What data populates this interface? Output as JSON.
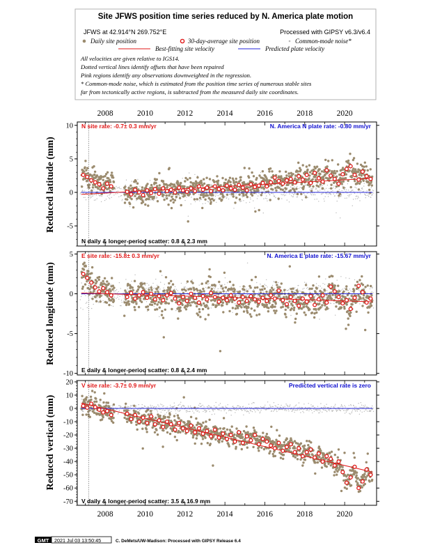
{
  "header": {
    "title": "Site JFWS position time series reduced by N. America plate motion",
    "site_line": "JFWS at 42.914°N 269.752°E",
    "processing_line": "Processed with GIPSY v6.3/v6.4",
    "legend": {
      "daily": "Daily site position",
      "avg30": "30-day-average site position",
      "cmn": "Common-mode noise*",
      "fit": "Best-fitting site velocity",
      "pred": "Predicted plate velocity"
    },
    "notes": [
      "All velocities are given relative to IGS14.",
      "Dotted vertical lines identify offsets that have been repaired",
      "Pink regions identify any observations downweighted in the regression.",
      "* Common-mode noise, which is estimated from the position time series of numerous stable sites",
      "far from tectonically active regions, is subtracted from the measured daily site coordinates."
    ]
  },
  "colors": {
    "daily": "#9b8b6e",
    "avg_fill": "#ffffff",
    "avg_stroke": "#e01818",
    "cmn": "#b8b8b8",
    "fit": "#e01818",
    "pred": "#2424d8",
    "site_rate_text": "#e01818",
    "plate_rate_text": "#1010d0"
  },
  "chart_data": [
    {
      "type": "scatter",
      "component": "N",
      "ylabel": "Reduced latitude (mm)",
      "xlim": [
        2006.6,
        2021.6
      ],
      "ylim": [
        -8,
        10.5
      ],
      "yticks": [
        10,
        5,
        0,
        -5
      ],
      "xticks": [
        2008,
        2010,
        2012,
        2014,
        2016,
        2018,
        2020
      ],
      "site_rate": "N site rate:  -0.7± 0.3 mm/yr",
      "plate_rate": "N. America N plate rate:  -0.80 mm/yr",
      "scatter": "N daily & longer-period scatter:   0.8 &   2.3 mm",
      "offset_x": 2007.18,
      "fit_line": [
        [
          2006.8,
          -0.3
        ],
        [
          2021.4,
          2.1
        ]
      ],
      "pred_line": [
        [
          2006.8,
          0.0
        ],
        [
          2021.4,
          0.0
        ]
      ],
      "avg_x": [
        2006.9,
        2007.1,
        2007.3,
        2007.5,
        2007.7,
        2007.9,
        2008.1,
        2008.3,
        2009.1,
        2009.3,
        2009.5,
        2009.7,
        2009.9,
        2010.1,
        2010.3,
        2010.5,
        2010.7,
        2010.9,
        2011.1,
        2011.3,
        2011.5,
        2011.7,
        2011.9,
        2012.1,
        2012.3,
        2012.5,
        2012.7,
        2012.9,
        2013.1,
        2013.3,
        2013.5,
        2013.7,
        2013.9,
        2014.1,
        2014.3,
        2014.5,
        2014.7,
        2014.9,
        2015.1,
        2015.3,
        2015.5,
        2015.7,
        2015.9,
        2016.1,
        2016.3,
        2016.5,
        2016.7,
        2016.9,
        2017.1,
        2017.3,
        2017.5,
        2017.7,
        2017.9,
        2018.1,
        2018.3,
        2018.5,
        2018.7,
        2018.9,
        2019.1,
        2019.3,
        2019.5,
        2019.7,
        2019.9,
        2020.1,
        2020.3,
        2020.5,
        2020.7,
        2020.9,
        2021.1,
        2021.3
      ],
      "avg_y": [
        2.6,
        2.3,
        1.8,
        1.5,
        1.2,
        0.6,
        1.3,
        0.9,
        0.1,
        -0.3,
        0.4,
        0.0,
        -0.4,
        0.3,
        -0.1,
        0.5,
        -0.2,
        0.6,
        0.2,
        0.4,
        0.0,
        0.7,
        0.3,
        0.1,
        0.6,
        0.2,
        0.9,
        0.4,
        0.7,
        0.2,
        0.9,
        0.5,
        0.3,
        1.0,
        0.6,
        0.4,
        1.1,
        0.7,
        0.3,
        1.2,
        0.8,
        1.0,
        1.4,
        0.9,
        1.5,
        2.2,
        1.7,
        1.3,
        1.8,
        2.0,
        1.5,
        2.4,
        1.9,
        2.6,
        1.4,
        2.9,
        2.1,
        1.6,
        3.3,
        2.5,
        2.0,
        1.3,
        2.7,
        3.5,
        3.9,
        2.6,
        1.9,
        3.1,
        2.4,
        2.0
      ]
    },
    {
      "type": "scatter",
      "component": "E",
      "ylabel": "Reduced longitude (mm)",
      "xlim": [
        2006.6,
        2021.6
      ],
      "ylim": [
        -10.2,
        5.3
      ],
      "yticks": [
        5,
        0,
        -5,
        -10
      ],
      "xticks": [
        2008,
        2010,
        2012,
        2014,
        2016,
        2018,
        2020
      ],
      "site_rate": "E site rate:  -15.8± 0.3 mm/yr",
      "plate_rate": "N. America E plate rate:  -15.67 mm/yr",
      "scatter": "E daily & longer-period scatter:   0.8 &   2.4 mm",
      "offset_x": 2007.18,
      "fit_line": [
        [
          2006.8,
          0.1
        ],
        [
          2021.4,
          -1.0
        ]
      ],
      "pred_line": [
        [
          2006.8,
          0.0
        ],
        [
          2021.4,
          0.0
        ]
      ],
      "avg_x": [
        2006.9,
        2007.1,
        2007.3,
        2007.5,
        2007.7,
        2007.9,
        2008.1,
        2008.3,
        2009.1,
        2009.3,
        2009.5,
        2009.7,
        2009.9,
        2010.1,
        2010.3,
        2010.5,
        2010.7,
        2010.9,
        2011.1,
        2011.3,
        2011.5,
        2011.7,
        2011.9,
        2012.1,
        2012.3,
        2012.5,
        2012.7,
        2012.9,
        2013.1,
        2013.3,
        2013.5,
        2013.7,
        2013.9,
        2014.1,
        2014.3,
        2014.5,
        2014.7,
        2014.9,
        2015.1,
        2015.3,
        2015.5,
        2015.7,
        2015.9,
        2016.1,
        2016.3,
        2016.5,
        2016.7,
        2016.9,
        2017.1,
        2017.3,
        2017.5,
        2017.7,
        2017.9,
        2018.1,
        2018.3,
        2018.5,
        2018.7,
        2018.9,
        2019.1,
        2019.3,
        2019.5,
        2019.7,
        2019.9,
        2020.1,
        2020.3,
        2020.5,
        2020.7,
        2020.9,
        2021.1,
        2021.3
      ],
      "avg_y": [
        2.5,
        2.0,
        1.4,
        0.8,
        0.3,
        0.7,
        0.2,
        -0.2,
        -0.4,
        0.1,
        -0.6,
        -0.2,
        0.2,
        -0.5,
        0.0,
        -0.7,
        -0.3,
        -0.8,
        -0.2,
        0.1,
        -0.6,
        -1.2,
        -0.4,
        -0.9,
        0.0,
        -0.5,
        -1.1,
        -0.3,
        -0.7,
        0.1,
        -0.4,
        -1.0,
        -0.5,
        -0.8,
        -0.2,
        -0.6,
        -1.1,
        -0.4,
        -0.9,
        -0.3,
        -0.7,
        -1.0,
        -0.5,
        -0.9,
        -0.2,
        -0.6,
        0.4,
        -0.8,
        -1.3,
        -0.4,
        -0.9,
        -1.5,
        -0.6,
        -1.0,
        -0.3,
        -1.4,
        -0.7,
        -0.2,
        -1.1,
        0.9,
        0.3,
        -0.4,
        -1.2,
        -0.8,
        -1.9,
        -0.5,
        1.0,
        0.2,
        -1.1,
        -0.6
      ]
    },
    {
      "type": "scatter",
      "component": "V",
      "ylabel": "Reduced vertical (mm)",
      "xlim": [
        2006.6,
        2021.6
      ],
      "ylim": [
        -73,
        21
      ],
      "yticks": [
        20,
        10,
        0,
        -10,
        -20,
        -30,
        -40,
        -50,
        -60,
        -70
      ],
      "xticks": [
        2008,
        2010,
        2012,
        2014,
        2016,
        2018,
        2020
      ],
      "site_rate": "V site rate:  -3.7± 0.9 mm/yr",
      "plate_rate": "Predicted vertical rate is zero",
      "scatter": "V daily & longer-period scatter:   3.5 &  16.9 mm",
      "offset_x": 2007.18,
      "fit_line": [
        [
          2006.8,
          4.0
        ],
        [
          2021.4,
          -48.0
        ]
      ],
      "pred_line": [
        [
          2006.8,
          0.0
        ],
        [
          2021.4,
          0.0
        ]
      ],
      "avg_x": [
        2006.9,
        2007.1,
        2007.3,
        2007.5,
        2007.7,
        2007.9,
        2008.1,
        2008.3,
        2009.1,
        2009.3,
        2009.5,
        2009.7,
        2009.9,
        2010.1,
        2010.3,
        2010.5,
        2010.7,
        2010.9,
        2011.1,
        2011.3,
        2011.5,
        2011.7,
        2011.9,
        2012.1,
        2012.3,
        2012.5,
        2012.7,
        2012.9,
        2013.1,
        2013.3,
        2013.5,
        2013.7,
        2013.9,
        2014.1,
        2014.3,
        2014.5,
        2014.7,
        2014.9,
        2015.1,
        2015.3,
        2015.5,
        2015.7,
        2015.9,
        2016.1,
        2016.3,
        2016.5,
        2016.7,
        2016.9,
        2017.1,
        2017.3,
        2017.5,
        2017.7,
        2017.9,
        2018.1,
        2018.3,
        2018.5,
        2018.7,
        2018.9,
        2019.1,
        2019.3,
        2019.5,
        2019.7,
        2019.9,
        2020.1,
        2020.3,
        2020.5,
        2020.7,
        2020.9,
        2021.1,
        2021.3
      ],
      "avg_y": [
        2.0,
        0.5,
        3.5,
        1.0,
        -1.0,
        -3.0,
        -2.0,
        -5.0,
        -4.0,
        -8.0,
        -5.0,
        -10.0,
        -7.0,
        -11.0,
        -6.0,
        -12.0,
        -9.0,
        -14.0,
        -10.0,
        -12.0,
        -16.0,
        -11.0,
        -15.0,
        -17.0,
        -13.0,
        -18.0,
        -15.0,
        -19.0,
        -17.0,
        -21.0,
        -16.0,
        -22.0,
        -19.0,
        -23.0,
        -20.0,
        -25.0,
        -18.0,
        -26.0,
        -21.0,
        -24.0,
        -20.0,
        -27.0,
        -23.0,
        -25.0,
        -28.0,
        -30.0,
        -26.0,
        -32.0,
        -29.0,
        -27.0,
        -33.0,
        -30.0,
        -36.0,
        -33.0,
        -31.0,
        -37.0,
        -34.0,
        -40.0,
        -36.0,
        -38.0,
        -43.0,
        -40.0,
        -48.0,
        -56.0,
        -52.0,
        -44.0,
        -60.0,
        -55.0,
        -46.0,
        -50.0
      ]
    }
  ],
  "footer": {
    "logo_text": "GMT",
    "timestamp": "2021 Jul 03 13:50:45",
    "credit": "C. DeMets/UW-Madison: Processed with GIPSY Release 6.4"
  }
}
